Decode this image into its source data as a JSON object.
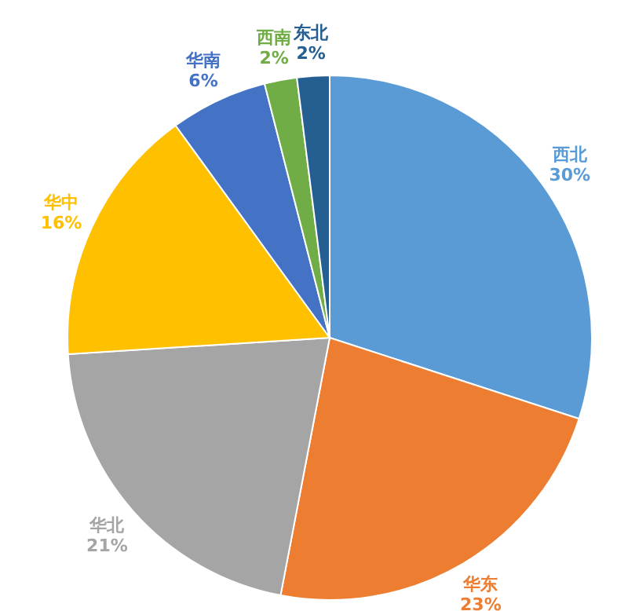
{
  "chart_data": {
    "type": "pie",
    "categories": [
      "西北",
      "华东",
      "华北",
      "华中",
      "华南",
      "西南",
      "东北"
    ],
    "values": [
      30,
      23,
      21,
      16,
      6,
      2,
      2
    ],
    "value_labels": [
      "30%",
      "23%",
      "21%",
      "16%",
      "6%",
      "2%",
      "2%"
    ],
    "colors": [
      "#5b9bd5",
      "#ed7d31",
      "#a5a5a5",
      "#ffc000",
      "#4472c4",
      "#70ad47",
      "#255e91"
    ],
    "legend": false
  }
}
